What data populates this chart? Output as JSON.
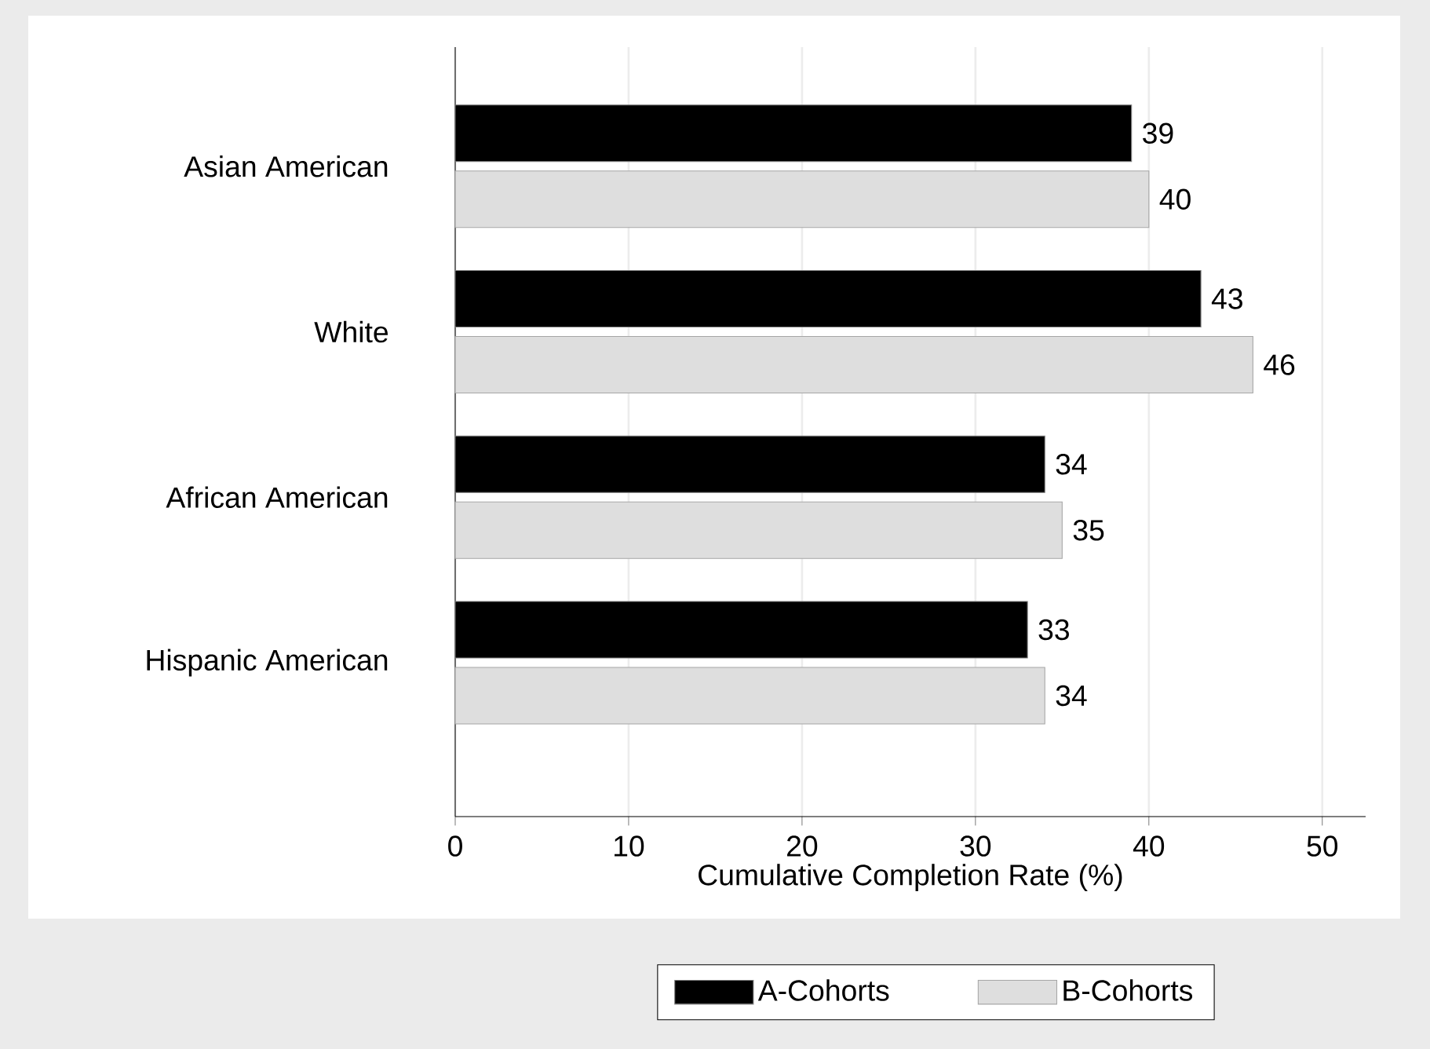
{
  "chart_data": {
    "type": "bar",
    "orientation": "horizontal",
    "xlabel": "Cumulative Completion Rate (%)",
    "categories": [
      "Asian American",
      "White",
      "African American",
      "Hispanic American"
    ],
    "series": [
      {
        "name": "A-Cohorts",
        "color": "#000000",
        "values": [
          39,
          43,
          34,
          33
        ]
      },
      {
        "name": "B-Cohorts",
        "color": "#dedede",
        "values": [
          40,
          46,
          35,
          34
        ]
      }
    ],
    "xlim": [
      0,
      52.5
    ],
    "xticks": [
      0,
      10,
      20,
      30,
      40,
      50
    ],
    "grid": "x",
    "legend": "bottom",
    "data_labels": true
  }
}
